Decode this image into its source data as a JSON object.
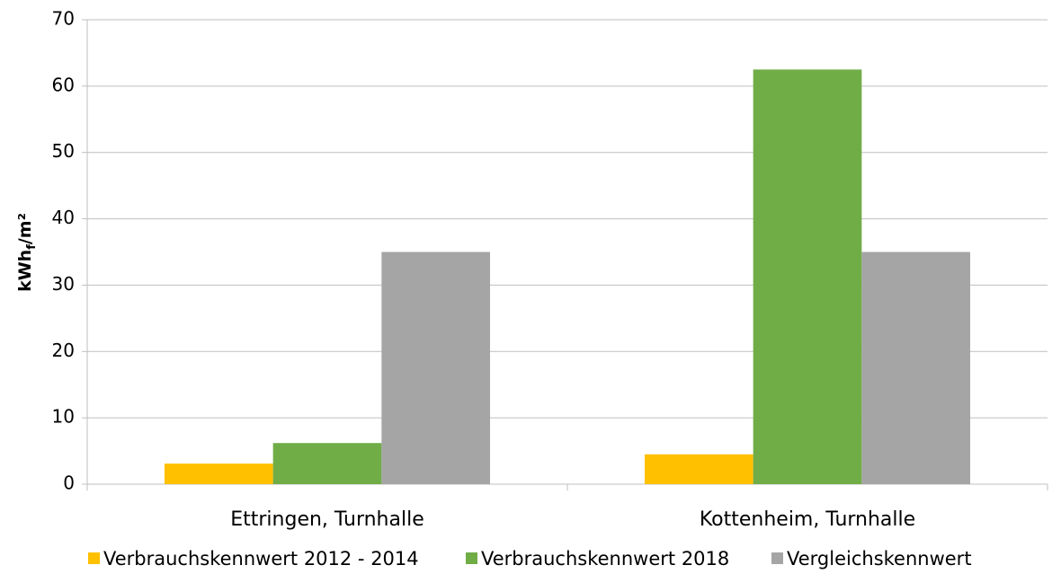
{
  "chart_data": {
    "type": "bar",
    "y_label": [
      "kWh",
      "f",
      "/m²"
    ],
    "categories": [
      "Ettringen, Turnhalle",
      "Kottenheim, Turnhalle"
    ],
    "series": [
      {
        "name": "Verbrauchskennwert 2012 - 2014",
        "color": "#ffc000",
        "values": [
          3.1,
          4.5
        ]
      },
      {
        "name": "Verbrauchskennwert 2018",
        "color": "#70ad47",
        "values": [
          6.2,
          62.5
        ]
      },
      {
        "name": "Vergleichskennwert",
        "color": "#a5a5a5",
        "values": [
          35,
          35
        ]
      }
    ],
    "ylim": [
      0,
      70
    ],
    "yticks": [
      0,
      10,
      20,
      30,
      40,
      50,
      60,
      70
    ],
    "grid": true,
    "legend": "bottom"
  }
}
